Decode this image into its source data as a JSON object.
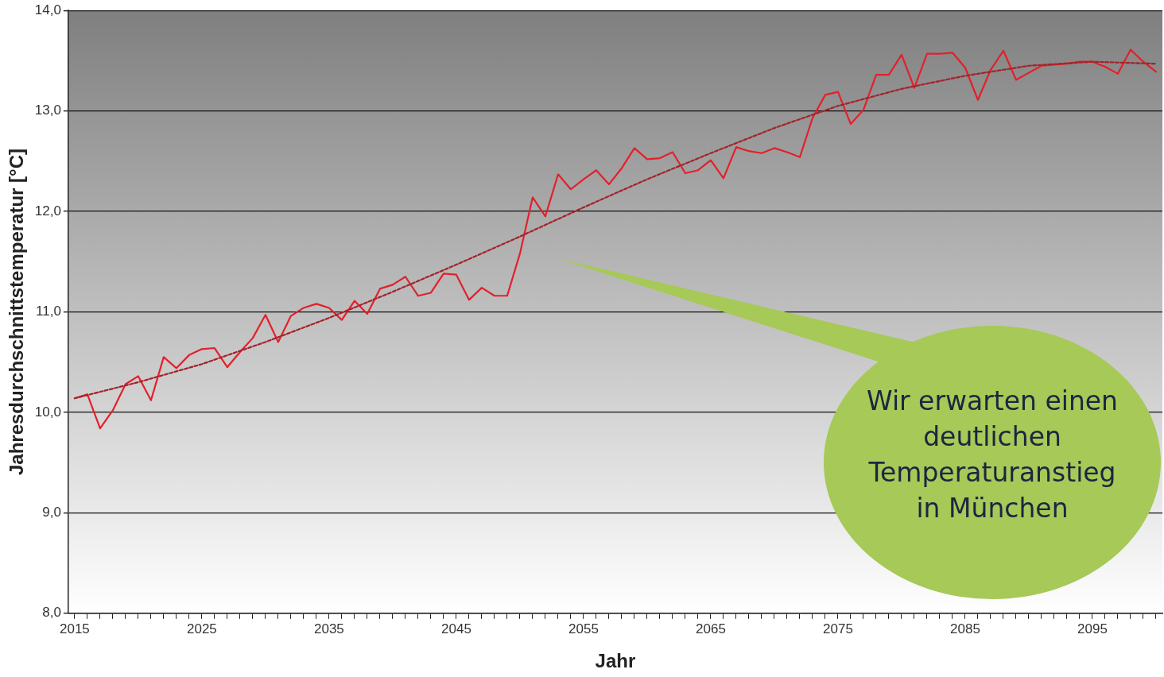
{
  "chart_data": {
    "type": "line",
    "xlabel": "Jahr",
    "ylabel": "Jahresdurchschnittstemperatur [°C]",
    "xlim": [
      2014.5,
      2100.5
    ],
    "xticks": [
      2015,
      {
        "value": 2016,
        "label": null
      },
      {
        "value": 2017,
        "label": null
      },
      {
        "value": 2018,
        "label": null
      },
      {
        "value": 2019,
        "label": null
      },
      {
        "value": 2020,
        "label": null
      },
      {
        "value": 2021,
        "label": null
      },
      {
        "value": 2022,
        "label": null
      },
      {
        "value": 2023,
        "label": null
      },
      {
        "value": 2024,
        "label": null
      },
      2025,
      {
        "value": 2026,
        "label": null
      },
      {
        "value": 2027,
        "label": null
      },
      {
        "value": 2028,
        "label": null
      },
      {
        "value": 2029,
        "label": null
      },
      {
        "value": 2030,
        "label": null
      },
      {
        "value": 2031,
        "label": null
      },
      {
        "value": 2032,
        "label": null
      },
      {
        "value": 2033,
        "label": null
      },
      {
        "value": 2034,
        "label": null
      },
      2035,
      {
        "value": 2036,
        "label": null
      },
      {
        "value": 2037,
        "label": null
      },
      {
        "value": 2038,
        "label": null
      },
      {
        "value": 2039,
        "label": null
      },
      {
        "value": 2040,
        "label": null
      },
      {
        "value": 2041,
        "label": null
      },
      {
        "value": 2042,
        "label": null
      },
      {
        "value": 2043,
        "label": null
      },
      {
        "value": 2044,
        "label": null
      },
      2045,
      {
        "value": 2046,
        "label": null
      },
      {
        "value": 2047,
        "label": null
      },
      {
        "value": 2048,
        "label": null
      },
      {
        "value": 2049,
        "label": null
      },
      {
        "value": 2050,
        "label": null
      },
      {
        "value": 2051,
        "label": null
      },
      {
        "value": 2052,
        "label": null
      },
      {
        "value": 2053,
        "label": null
      },
      {
        "value": 2054,
        "label": null
      },
      2055,
      {
        "value": 2056,
        "label": null
      },
      {
        "value": 2057,
        "label": null
      },
      {
        "value": 2058,
        "label": null
      },
      {
        "value": 2059,
        "label": null
      },
      {
        "value": 2060,
        "label": null
      },
      {
        "value": 2061,
        "label": null
      },
      {
        "value": 2062,
        "label": null
      },
      {
        "value": 2063,
        "label": null
      },
      {
        "value": 2064,
        "label": null
      },
      2065,
      {
        "value": 2066,
        "label": null
      },
      {
        "value": 2067,
        "label": null
      },
      {
        "value": 2068,
        "label": null
      },
      {
        "value": 2069,
        "label": null
      },
      {
        "value": 2070,
        "label": null
      },
      {
        "value": 2071,
        "label": null
      },
      {
        "value": 2072,
        "label": null
      },
      {
        "value": 2073,
        "label": null
      },
      {
        "value": 2074,
        "label": null
      },
      2075,
      {
        "value": 2076,
        "label": null
      },
      {
        "value": 2077,
        "label": null
      },
      {
        "value": 2078,
        "label": null
      },
      {
        "value": 2079,
        "label": null
      },
      {
        "value": 2080,
        "label": null
      },
      {
        "value": 2081,
        "label": null
      },
      {
        "value": 2082,
        "label": null
      },
      {
        "value": 2083,
        "label": null
      },
      {
        "value": 2084,
        "label": null
      },
      2085,
      {
        "value": 2086,
        "label": null
      },
      {
        "value": 2087,
        "label": null
      },
      {
        "value": 2088,
        "label": null
      },
      {
        "value": 2089,
        "label": null
      },
      {
        "value": 2090,
        "label": null
      },
      {
        "value": 2091,
        "label": null
      },
      {
        "value": 2092,
        "label": null
      },
      {
        "value": 2093,
        "label": null
      },
      {
        "value": 2094,
        "label": null
      },
      2095,
      {
        "value": 2096,
        "label": null
      },
      {
        "value": 2097,
        "label": null
      },
      {
        "value": 2098,
        "label": null
      },
      {
        "value": 2099,
        "label": null
      },
      {
        "value": 2100,
        "label": null
      }
    ],
    "ylim": [
      8,
      14
    ],
    "yticks": [
      {
        "value": 8,
        "label": "8,0"
      },
      {
        "value": 9,
        "label": "9,0"
      },
      {
        "value": 10,
        "label": "10,0"
      },
      {
        "value": 11,
        "label": "11,0"
      },
      {
        "value": 12,
        "label": "12,0"
      },
      {
        "value": 13,
        "label": "13,0"
      },
      {
        "value": 14,
        "label": "14,0"
      }
    ],
    "grid": "y",
    "legend": false,
    "marker": "none",
    "series": [
      {
        "color": "#e3202b",
        "line_style": "solid",
        "x": [
          2015,
          2016,
          2017,
          2018,
          2019,
          2020,
          2021,
          2022,
          2023,
          2024,
          2025,
          2026,
          2027,
          2028,
          2029,
          2030,
          2031,
          2032,
          2033,
          2034,
          2035,
          2036,
          2037,
          2038,
          2039,
          2040,
          2041,
          2042,
          2043,
          2044,
          2045,
          2046,
          2047,
          2048,
          2049,
          2050,
          2051,
          2052,
          2053,
          2054,
          2055,
          2056,
          2057,
          2058,
          2059,
          2060,
          2061,
          2062,
          2063,
          2064,
          2065,
          2066,
          2067,
          2068,
          2069,
          2070,
          2071,
          2072,
          2073,
          2074,
          2075,
          2076,
          2077,
          2078,
          2079,
          2080,
          2081,
          2082,
          2083,
          2084,
          2085,
          2086,
          2087,
          2088,
          2089,
          2090,
          2091,
          2092,
          2093,
          2094,
          2095,
          2096,
          2097,
          2098,
          2099,
          2100
        ],
        "values": [
          10.14,
          10.18,
          9.84,
          10.02,
          10.28,
          10.36,
          10.12,
          10.55,
          10.44,
          10.57,
          10.63,
          10.64,
          10.45,
          10.6,
          10.74,
          10.97,
          10.7,
          10.96,
          11.04,
          11.08,
          11.04,
          10.92,
          11.11,
          10.98,
          11.23,
          11.27,
          11.35,
          11.16,
          11.19,
          11.38,
          11.37,
          11.12,
          11.24,
          11.16,
          11.16,
          11.58,
          12.14,
          11.95,
          12.37,
          12.22,
          12.32,
          12.41,
          12.27,
          12.43,
          12.63,
          12.52,
          12.53,
          12.59,
          12.38,
          12.41,
          12.51,
          12.33,
          12.64,
          12.6,
          12.58,
          12.63,
          12.59,
          12.54,
          12.93,
          13.16,
          13.19,
          12.87,
          13.01,
          13.36,
          13.36,
          13.56,
          13.23,
          13.57,
          13.57,
          13.58,
          13.43,
          13.11,
          13.41,
          13.6,
          13.31,
          13.38,
          13.45,
          13.46,
          13.47,
          13.49,
          13.49,
          13.44,
          13.37,
          13.61,
          13.49,
          13.39
        ]
      },
      {
        "color": "#a3232b",
        "line_style": "dashed",
        "x": [
          2015,
          2020,
          2025,
          2030,
          2035,
          2040,
          2045,
          2050,
          2055,
          2060,
          2065,
          2070,
          2075,
          2080,
          2085,
          2090,
          2095,
          2100
        ],
        "values": [
          10.14,
          10.3,
          10.48,
          10.7,
          10.94,
          11.2,
          11.47,
          11.75,
          12.04,
          12.32,
          12.58,
          12.83,
          13.05,
          13.22,
          13.35,
          13.45,
          13.49,
          13.47
        ]
      }
    ],
    "annotations": [
      "Wir erwarten einen deutlichen Temperaturanstieg in München"
    ]
  }
}
